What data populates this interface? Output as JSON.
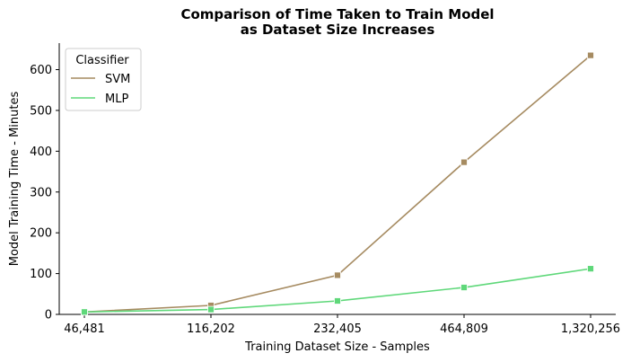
{
  "chart_data": {
    "type": "line",
    "title_lines": [
      "Comparison of Time Taken to Train Model",
      "as Dataset Size Increases"
    ],
    "xlabel": "Training Dataset Size - Samples",
    "ylabel": "Model Training Time - Minutes",
    "categories": [
      "46,481",
      "116,202",
      "232,405",
      "464,809",
      "1,320,256"
    ],
    "ylim": [
      0,
      665
    ],
    "yticks": [
      0,
      100,
      200,
      300,
      400,
      500,
      600
    ],
    "grid": false,
    "legend": {
      "title": "Classifier",
      "placement": "top-left"
    },
    "marker": "square",
    "series": [
      {
        "name": "SVM",
        "color": "#a68b61",
        "values": [
          6,
          22,
          96,
          373,
          635
        ]
      },
      {
        "name": "MLP",
        "color": "#5fd87a",
        "values": [
          6,
          12,
          33,
          66,
          112
        ]
      }
    ]
  }
}
